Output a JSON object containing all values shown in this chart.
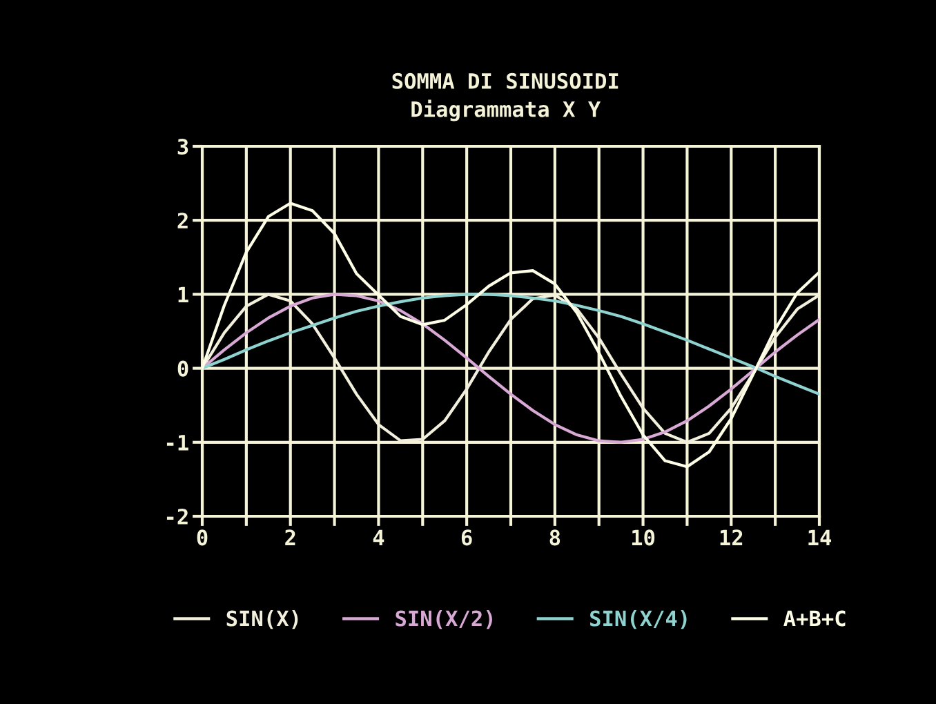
{
  "chart_data": {
    "type": "line",
    "title": "SOMMA DI SINUSOIDI",
    "subtitle": "Diagrammata X Y",
    "x": [
      0,
      0.5,
      1,
      1.5,
      2,
      2.5,
      3,
      3.5,
      4,
      4.5,
      5,
      5.5,
      6,
      6.5,
      7,
      7.5,
      8,
      8.5,
      9,
      9.5,
      10,
      10.5,
      11,
      11.5,
      12,
      12.5,
      13,
      13.5,
      14
    ],
    "series": [
      {
        "name": "SIN(X)",
        "color": "#f2f0dc",
        "values": [
          0,
          0.48,
          0.84,
          1.0,
          0.91,
          0.6,
          0.14,
          -0.35,
          -0.76,
          -0.98,
          -0.96,
          -0.71,
          -0.28,
          0.22,
          0.66,
          0.94,
          0.99,
          0.8,
          0.41,
          -0.08,
          -0.54,
          -0.88,
          -1.0,
          -0.88,
          -0.54,
          -0.07,
          0.42,
          0.8,
          0.99
        ]
      },
      {
        "name": "SIN(X/2)",
        "color": "#d9a9d6",
        "values": [
          0,
          0.25,
          0.48,
          0.68,
          0.84,
          0.95,
          1.0,
          0.98,
          0.91,
          0.78,
          0.6,
          0.38,
          0.14,
          -0.11,
          -0.35,
          -0.57,
          -0.76,
          -0.9,
          -0.98,
          -1.0,
          -0.96,
          -0.86,
          -0.71,
          -0.51,
          -0.28,
          -0.03,
          0.22,
          0.45,
          0.66
        ]
      },
      {
        "name": "SIN(X/4)",
        "color": "#8fd3d0",
        "values": [
          0,
          0.12,
          0.25,
          0.37,
          0.48,
          0.58,
          0.68,
          0.77,
          0.84,
          0.9,
          0.95,
          0.98,
          1.0,
          1.0,
          0.98,
          0.95,
          0.91,
          0.85,
          0.78,
          0.7,
          0.6,
          0.49,
          0.38,
          0.26,
          0.14,
          0.02,
          -0.11,
          -0.23,
          -0.35
        ]
      },
      {
        "name": "A+B+C",
        "color": "#ffffe8",
        "values": [
          0,
          0.85,
          1.57,
          2.05,
          2.23,
          2.13,
          1.82,
          1.28,
          0.99,
          0.7,
          0.59,
          0.65,
          0.86,
          1.11,
          1.29,
          1.32,
          1.14,
          0.75,
          0.21,
          -0.38,
          -0.9,
          -1.25,
          -1.33,
          -1.13,
          -0.68,
          -0.08,
          0.53,
          1.02,
          1.3
        ]
      }
    ],
    "xlim": [
      0,
      14
    ],
    "xticks": [
      0,
      {
        "value": 1,
        "label": null
      },
      2,
      {
        "value": 3,
        "label": null
      },
      4,
      {
        "value": 5,
        "label": null
      },
      6,
      {
        "value": 7,
        "label": null
      },
      8,
      {
        "value": 9,
        "label": null
      },
      10,
      {
        "value": 11,
        "label": null
      },
      12,
      {
        "value": 13,
        "label": null
      },
      14
    ],
    "ylim": [
      -2,
      3
    ],
    "yticks": [
      -2,
      -1,
      0,
      1,
      2,
      3
    ],
    "grid": true,
    "legend": "bottom",
    "line_style": "solid",
    "marker": "none"
  }
}
